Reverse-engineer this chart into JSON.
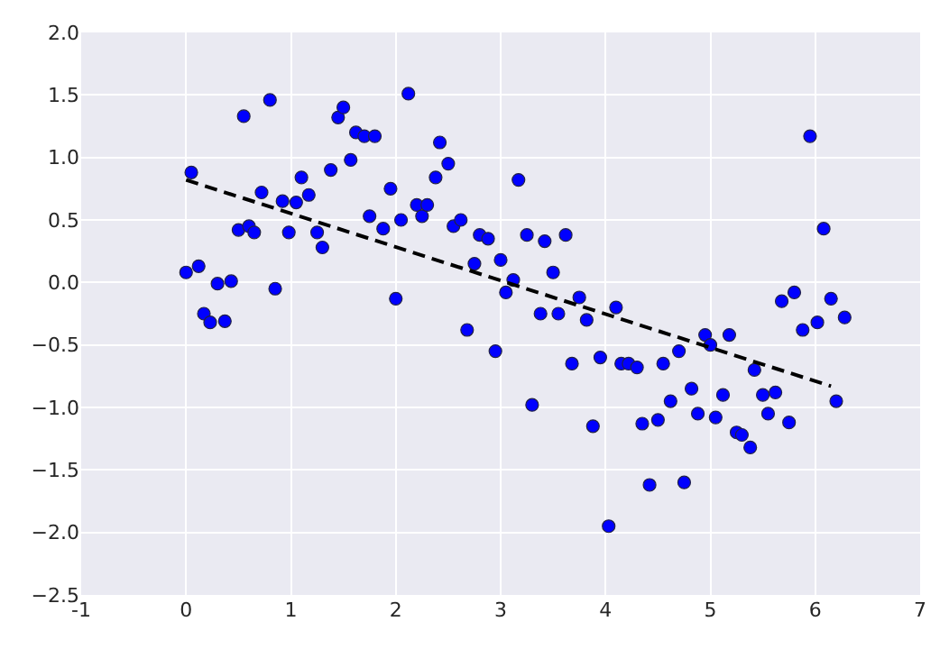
{
  "chart_data": {
    "type": "scatter",
    "xlim": [
      -1,
      7
    ],
    "ylim": [
      -2.5,
      2.0
    ],
    "xticks": [
      -1,
      0,
      1,
      2,
      3,
      4,
      5,
      6,
      7
    ],
    "yticks": [
      {
        "value": -2.5,
        "label": "−2.5"
      },
      {
        "value": -2.0,
        "label": "−2.0"
      },
      {
        "value": -1.5,
        "label": "−1.5"
      },
      {
        "value": -1.0,
        "label": "−1.0"
      },
      {
        "value": -0.5,
        "label": "−0.5"
      },
      {
        "value": 0.0,
        "label": "0.0"
      },
      {
        "value": 0.5,
        "label": "0.5"
      },
      {
        "value": 1.0,
        "label": "1.0"
      },
      {
        "value": 1.5,
        "label": "1.5"
      },
      {
        "value": 2.0,
        "label": "2.0"
      }
    ],
    "grid": true,
    "series": [
      {
        "color": "#0000ff",
        "marker": "circle",
        "x": [
          0.0,
          0.05,
          0.12,
          0.17,
          0.23,
          0.3,
          0.37,
          0.43,
          0.5,
          0.55,
          0.6,
          0.65,
          0.72,
          0.8,
          0.85,
          0.92,
          0.98,
          1.05,
          1.1,
          1.17,
          1.25,
          1.3,
          1.38,
          1.45,
          1.5,
          1.57,
          1.62,
          1.7,
          1.75,
          1.8,
          1.88,
          1.95,
          2.0,
          2.05,
          2.12,
          2.2,
          2.25,
          2.3,
          2.38,
          2.42,
          2.5,
          2.55,
          2.62,
          2.68,
          2.75,
          2.8,
          2.88,
          2.95,
          3.0,
          3.05,
          3.12,
          3.17,
          3.25,
          3.3,
          3.38,
          3.42,
          3.5,
          3.55,
          3.62,
          3.68,
          3.75,
          3.82,
          3.88,
          3.95,
          4.03,
          4.1,
          4.15,
          4.22,
          4.3,
          4.35,
          4.42,
          4.5,
          4.55,
          4.62,
          4.7,
          4.75,
          4.82,
          4.88,
          4.95,
          5.0,
          5.05,
          5.12,
          5.18,
          5.25,
          5.3,
          5.38,
          5.42,
          5.5,
          5.55,
          5.62,
          5.68,
          5.75,
          5.8,
          5.88,
          5.95,
          6.02,
          6.08,
          6.15,
          6.2,
          6.28
        ],
        "values": [
          0.08,
          0.88,
          0.13,
          -0.25,
          -0.32,
          -0.01,
          -0.31,
          0.01,
          0.42,
          1.33,
          0.45,
          0.4,
          0.72,
          1.46,
          -0.05,
          0.65,
          0.4,
          0.64,
          0.84,
          0.7,
          0.4,
          0.28,
          0.9,
          1.32,
          1.4,
          0.98,
          1.2,
          1.17,
          0.53,
          1.17,
          0.43,
          0.75,
          -0.13,
          0.5,
          1.51,
          0.62,
          0.53,
          0.62,
          0.84,
          1.12,
          0.95,
          0.45,
          0.5,
          -0.38,
          0.15,
          0.38,
          0.35,
          -0.55,
          0.18,
          -0.08,
          0.02,
          0.82,
          0.38,
          -0.98,
          -0.25,
          0.33,
          0.08,
          -0.25,
          0.38,
          -0.65,
          -0.12,
          -0.3,
          -1.15,
          -0.6,
          -1.95,
          -0.2,
          -0.65,
          -0.65,
          -0.68,
          -1.13,
          -1.62,
          -1.1,
          -0.65,
          -0.95,
          -0.55,
          -1.6,
          -0.85,
          -1.05,
          -0.42,
          -0.5,
          -1.08,
          -0.9,
          -0.42,
          -1.2,
          -1.22,
          -1.32,
          -0.7,
          -0.9,
          -1.05,
          -0.88,
          -0.15,
          -1.12,
          -0.08,
          -0.38,
          1.17,
          -0.32,
          0.43,
          -0.13,
          -0.95,
          -0.28
        ]
      },
      {
        "type": "line",
        "color": "#000000",
        "line_style": "dashed",
        "marker": "none",
        "x": [
          0.0,
          6.15
        ],
        "values": [
          0.82,
          -0.83
        ]
      }
    ]
  }
}
